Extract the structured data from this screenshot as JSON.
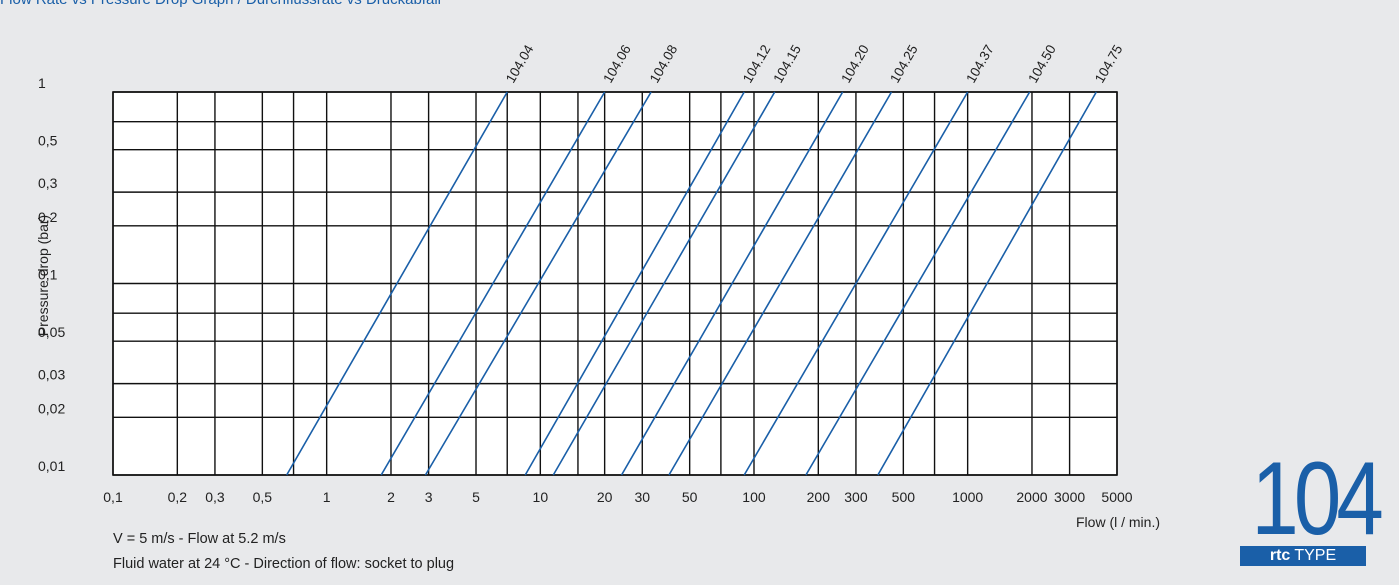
{
  "header": {
    "title": "Flow Rate vs Pressure Drop Graph / Durchflussrate vs Druckabfall"
  },
  "chart_data": {
    "type": "line",
    "title": "",
    "xlabel": "Flow (l / min.)",
    "ylabel": "Pressure drop (bar)",
    "xscale": "log",
    "yscale": "log",
    "xlim": [
      0.1,
      5000
    ],
    "ylim": [
      0.01,
      1
    ],
    "grid": true,
    "legend": "series labels at top of each line",
    "line_color": "#1a5fa8",
    "x_ticks": [
      {
        "v": 0.1,
        "label": "0,1"
      },
      {
        "v": 0.2,
        "label": "0,2"
      },
      {
        "v": 0.3,
        "label": "0,3"
      },
      {
        "v": 0.5,
        "label": "0,5"
      },
      {
        "v": 1,
        "label": "1"
      },
      {
        "v": 2,
        "label": "2"
      },
      {
        "v": 3,
        "label": "3"
      },
      {
        "v": 5,
        "label": "5"
      },
      {
        "v": 10,
        "label": "10"
      },
      {
        "v": 20,
        "label": "20"
      },
      {
        "v": 30,
        "label": "30"
      },
      {
        "v": 50,
        "label": "50"
      },
      {
        "v": 100,
        "label": "100"
      },
      {
        "v": 200,
        "label": "200"
      },
      {
        "v": 300,
        "label": "300"
      },
      {
        "v": 500,
        "label": "500"
      },
      {
        "v": 1000,
        "label": "1000"
      },
      {
        "v": 2000,
        "label": "2000"
      },
      {
        "v": 3000,
        "label": "3000"
      },
      {
        "v": 5000,
        "label": "5000"
      }
    ],
    "y_ticks": [
      {
        "v": 0.01,
        "label": "0,01"
      },
      {
        "v": 0.02,
        "label": "0,02"
      },
      {
        "v": 0.03,
        "label": "0,03"
      },
      {
        "v": 0.05,
        "label": "0,05"
      },
      {
        "v": 0.1,
        "label": "0,1"
      },
      {
        "v": 0.2,
        "label": "0,2"
      },
      {
        "v": 0.3,
        "label": "0,3"
      },
      {
        "v": 0.5,
        "label": "0,5"
      },
      {
        "v": 1,
        "label": "1"
      }
    ],
    "x_grid_extra": [
      0.7,
      7,
      15,
      70,
      700
    ],
    "y_grid_extra": [
      0.07,
      0.7
    ],
    "series": [
      {
        "name": "104.04",
        "x": [
          0.65,
          7.0
        ],
        "y": [
          0.01,
          1
        ]
      },
      {
        "name": "104.06",
        "x": [
          1.8,
          20.0
        ],
        "y": [
          0.01,
          1
        ]
      },
      {
        "name": "104.08",
        "x": [
          2.9,
          33.0
        ],
        "y": [
          0.01,
          1
        ]
      },
      {
        "name": "104.12",
        "x": [
          8.5,
          90.0
        ],
        "y": [
          0.01,
          1
        ]
      },
      {
        "name": "104.15",
        "x": [
          11.5,
          125.0
        ],
        "y": [
          0.01,
          1
        ]
      },
      {
        "name": "104.20",
        "x": [
          24.0,
          260.0
        ],
        "y": [
          0.01,
          1
        ]
      },
      {
        "name": "104.25",
        "x": [
          40.0,
          440.0
        ],
        "y": [
          0.01,
          1
        ]
      },
      {
        "name": "104.37",
        "x": [
          90.0,
          1000.0
        ],
        "y": [
          0.01,
          1
        ]
      },
      {
        "name": "104.50",
        "x": [
          175.0,
          1950.0
        ],
        "y": [
          0.01,
          1
        ]
      },
      {
        "name": "104.75",
        "x": [
          380.0,
          4000.0
        ],
        "y": [
          0.01,
          1
        ]
      }
    ]
  },
  "notes": {
    "line1": "V = 5 m/s - Flow at 5.2 m/s",
    "line2": "Fluid water at 24 °C - Direction of flow: socket to plug"
  },
  "badge": {
    "number": "104",
    "brand": "rtc",
    "type_label": "TYPE"
  }
}
